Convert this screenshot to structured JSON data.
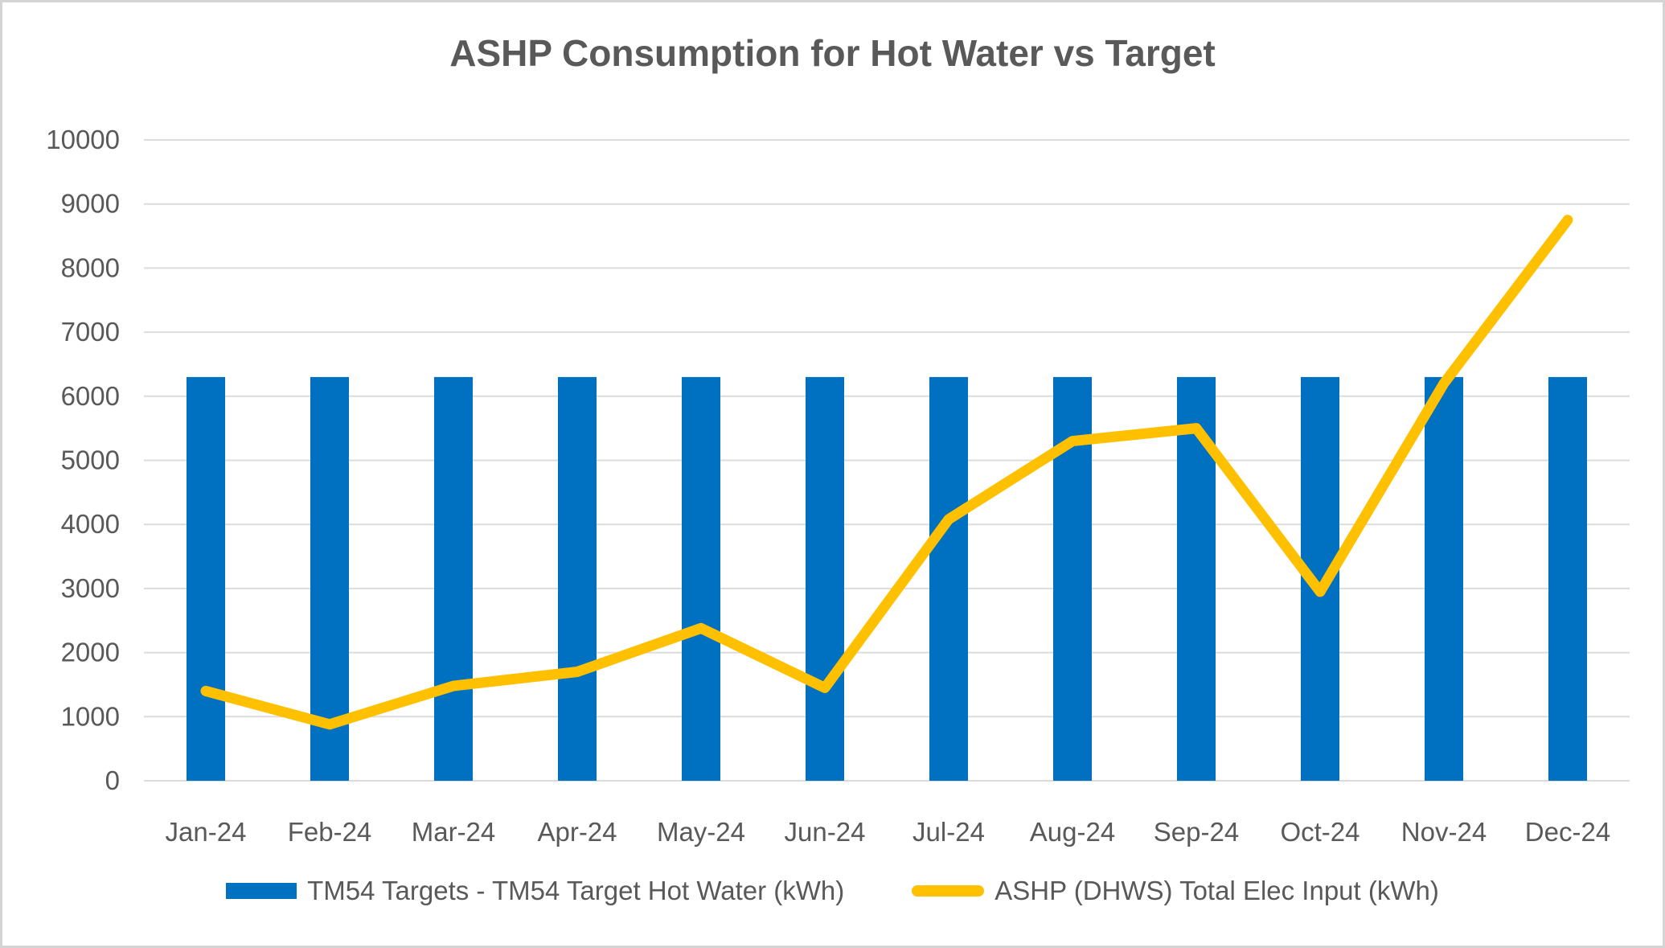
{
  "title": "ASHP Consumption for Hot Water vs Target",
  "chart_data": {
    "type": "combo",
    "title": "ASHP Consumption for Hot Water vs Target",
    "categories": [
      "Jan-24",
      "Feb-24",
      "Mar-24",
      "Apr-24",
      "May-24",
      "Jun-24",
      "Jul-24",
      "Aug-24",
      "Sep-24",
      "Oct-24",
      "Nov-24",
      "Dec-24"
    ],
    "series": [
      {
        "name": "TM54 Targets - TM54 Target Hot Water (kWh)",
        "type": "bar",
        "color": "#0070C0",
        "values": [
          6300,
          6300,
          6300,
          6300,
          6300,
          6300,
          6300,
          6300,
          6300,
          6300,
          6300,
          6300
        ]
      },
      {
        "name": "ASHP (DHWS) Total Elec Input (kWh)",
        "type": "line",
        "color": "#FFC000",
        "values": [
          1400,
          880,
          1480,
          1700,
          2380,
          1450,
          4080,
          5300,
          5500,
          2950,
          6200,
          8750
        ]
      }
    ],
    "xlabel": "",
    "ylabel": "",
    "ylim": [
      0,
      10000
    ],
    "y_ticks": [
      0,
      1000,
      2000,
      3000,
      4000,
      5000,
      6000,
      7000,
      8000,
      9000,
      10000
    ],
    "grid": "horizontal",
    "legend_position": "bottom"
  },
  "colors": {
    "bar_blue": "#0070C0",
    "line_gold": "#FFC000",
    "text_gray": "#595959",
    "gridline_gray": "#DCDCDC",
    "frame_border": "#D4D4D4"
  }
}
